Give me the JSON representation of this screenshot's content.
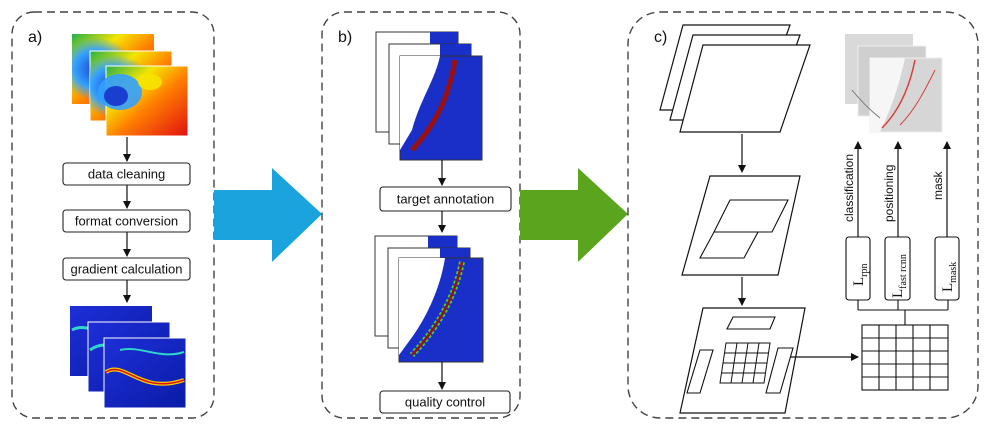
{
  "panels": {
    "a": {
      "label": "a)",
      "steps": [
        "data cleaning",
        "format conversion",
        "gradient calculation"
      ]
    },
    "b": {
      "label": "b)",
      "steps": [
        "target annotation",
        "quality control"
      ]
    },
    "c": {
      "label": "c)",
      "outputs": [
        "classification",
        "positioning",
        "mask"
      ],
      "losses": [
        {
          "main": "L",
          "sub": "rpn"
        },
        {
          "main": "L",
          "sub": "fast  rcnn"
        },
        {
          "main": "L",
          "sub": "mask"
        }
      ]
    }
  },
  "arrows": {
    "a_to_b_color": "#1aa3dc",
    "b_to_c_color": "#5aa51d"
  }
}
